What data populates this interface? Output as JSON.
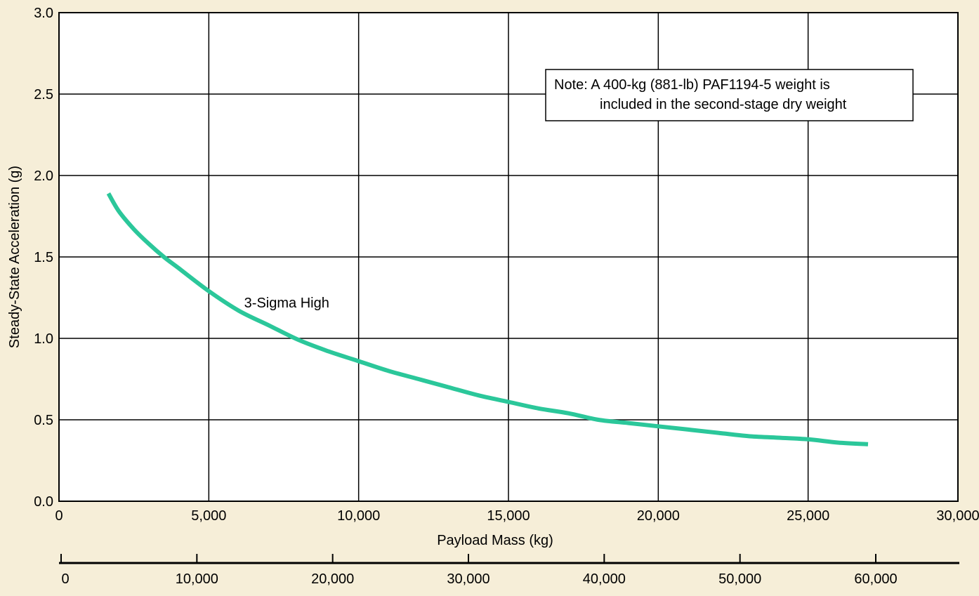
{
  "chart_data": {
    "type": "line",
    "title": "",
    "xlabel": "Payload Mass  (kg)",
    "ylabel": "Steady-State Acceleration (g)",
    "xlim": [
      0,
      30000
    ],
    "ylim": [
      0.0,
      3.0
    ],
    "x_ticks": [
      0,
      5000,
      10000,
      15000,
      20000,
      25000,
      30000
    ],
    "x_tick_labels": [
      "0",
      "5,000",
      "10,000",
      "15,000",
      "20,000",
      "25,000",
      "30,000"
    ],
    "y_ticks": [
      0.0,
      0.5,
      1.0,
      1.5,
      2.0,
      2.5,
      3.0
    ],
    "y_tick_labels": [
      "0.0",
      "0.5",
      "1.0",
      "1.5",
      "2.0",
      "2.5",
      "3.0"
    ],
    "grid": true,
    "secondary_x_axis": {
      "ticks": [
        0,
        10000,
        20000,
        30000,
        40000,
        50000,
        60000
      ],
      "tick_labels": [
        "0",
        "10,000",
        "20,000",
        "30,000",
        "40,000",
        "50,000",
        "60,000"
      ]
    },
    "series": [
      {
        "name": "3-Sigma High",
        "color": "#2bc79a",
        "x": [
          1650,
          2000,
          2500,
          3000,
          3500,
          4000,
          5000,
          6000,
          7000,
          8000,
          9000,
          10000,
          11000,
          12000,
          13000,
          14000,
          15000,
          16000,
          17000,
          18000,
          19000,
          20000,
          21000,
          22000,
          23000,
          24000,
          25000,
          26000,
          27000
        ],
        "y": [
          1.89,
          1.78,
          1.67,
          1.58,
          1.5,
          1.43,
          1.29,
          1.17,
          1.08,
          0.99,
          0.92,
          0.86,
          0.8,
          0.75,
          0.7,
          0.65,
          0.61,
          0.57,
          0.54,
          0.5,
          0.48,
          0.46,
          0.44,
          0.42,
          0.4,
          0.39,
          0.38,
          0.36,
          0.35
        ]
      }
    ],
    "annotations": [
      {
        "text": "3-Sigma High",
        "x": 7600,
        "y": 1.22
      }
    ],
    "note": {
      "line1": "Note: A 400-kg (881-lb) PAF1194-5 weight is",
      "line2": "included in the second-stage dry weight"
    }
  }
}
